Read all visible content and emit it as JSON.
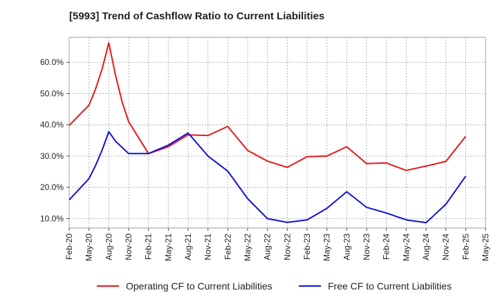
{
  "chart_data": {
    "type": "line",
    "title": "[5993]  Trend of Cashflow Ratio to Current Liabilities",
    "xlabel": "",
    "ylabel": "",
    "ylim": [
      7,
      68
    ],
    "y_ticks": [
      "10.0%",
      "20.0%",
      "30.0%",
      "40.0%",
      "50.0%",
      "60.0%"
    ],
    "y_tick_values": [
      10,
      20,
      30,
      40,
      50,
      60
    ],
    "x_tick_labels": [
      "Feb-20",
      "May-20",
      "Aug-20",
      "Nov-20",
      "Feb-21",
      "May-21",
      "Aug-21",
      "Nov-21",
      "Feb-22",
      "May-22",
      "Aug-22",
      "Nov-22",
      "Feb-23",
      "May-23",
      "Aug-23",
      "Nov-23",
      "Feb-24",
      "May-24",
      "Aug-24",
      "Nov-24",
      "Feb-25",
      "May-25"
    ],
    "x_range_months": [
      "2020-02",
      "2025-05"
    ],
    "grid": true,
    "legend_position": "bottom",
    "series": [
      {
        "name": "Operating CF to Current Liabilities",
        "color": "#e8161a",
        "points": [
          [
            "2020-02",
            39.8
          ],
          [
            "2020-05",
            46.3
          ],
          [
            "2020-06",
            51.5
          ],
          [
            "2020-07",
            58.0
          ],
          [
            "2020-08",
            66.2
          ],
          [
            "2020-09",
            56.0
          ],
          [
            "2020-10",
            47.5
          ],
          [
            "2020-11",
            41.0
          ],
          [
            "2021-02",
            30.8
          ],
          [
            "2021-05",
            33.0
          ],
          [
            "2021-08",
            36.8
          ],
          [
            "2021-11",
            36.6
          ],
          [
            "2022-02",
            39.5
          ],
          [
            "2022-05",
            31.8
          ],
          [
            "2022-08",
            28.4
          ],
          [
            "2022-11",
            26.4
          ],
          [
            "2023-02",
            29.8
          ],
          [
            "2023-05",
            30.0
          ],
          [
            "2023-08",
            33.0
          ],
          [
            "2023-11",
            27.6
          ],
          [
            "2024-02",
            27.8
          ],
          [
            "2024-05",
            25.4
          ],
          [
            "2024-08",
            26.8
          ],
          [
            "2024-11",
            28.3
          ],
          [
            "2025-02",
            36.3
          ]
        ]
      },
      {
        "name": "Free CF to Current Liabilities",
        "color": "#1010d4",
        "points": [
          [
            "2020-02",
            16.0
          ],
          [
            "2020-05",
            22.8
          ],
          [
            "2020-06",
            27.0
          ],
          [
            "2020-07",
            32.0
          ],
          [
            "2020-08",
            37.8
          ],
          [
            "2020-09",
            34.8
          ],
          [
            "2020-11",
            30.8
          ],
          [
            "2021-02",
            30.8
          ],
          [
            "2021-05",
            33.5
          ],
          [
            "2021-08",
            37.4
          ],
          [
            "2021-11",
            30.0
          ],
          [
            "2022-02",
            25.2
          ],
          [
            "2022-05",
            16.4
          ],
          [
            "2022-08",
            10.0
          ],
          [
            "2022-11",
            8.8
          ],
          [
            "2023-02",
            9.6
          ],
          [
            "2023-05",
            13.3
          ],
          [
            "2023-08",
            18.6
          ],
          [
            "2023-11",
            13.6
          ],
          [
            "2024-02",
            11.8
          ],
          [
            "2024-05",
            9.6
          ],
          [
            "2024-08",
            8.7
          ],
          [
            "2024-11",
            14.6
          ],
          [
            "2025-02",
            23.6
          ]
        ]
      }
    ]
  }
}
